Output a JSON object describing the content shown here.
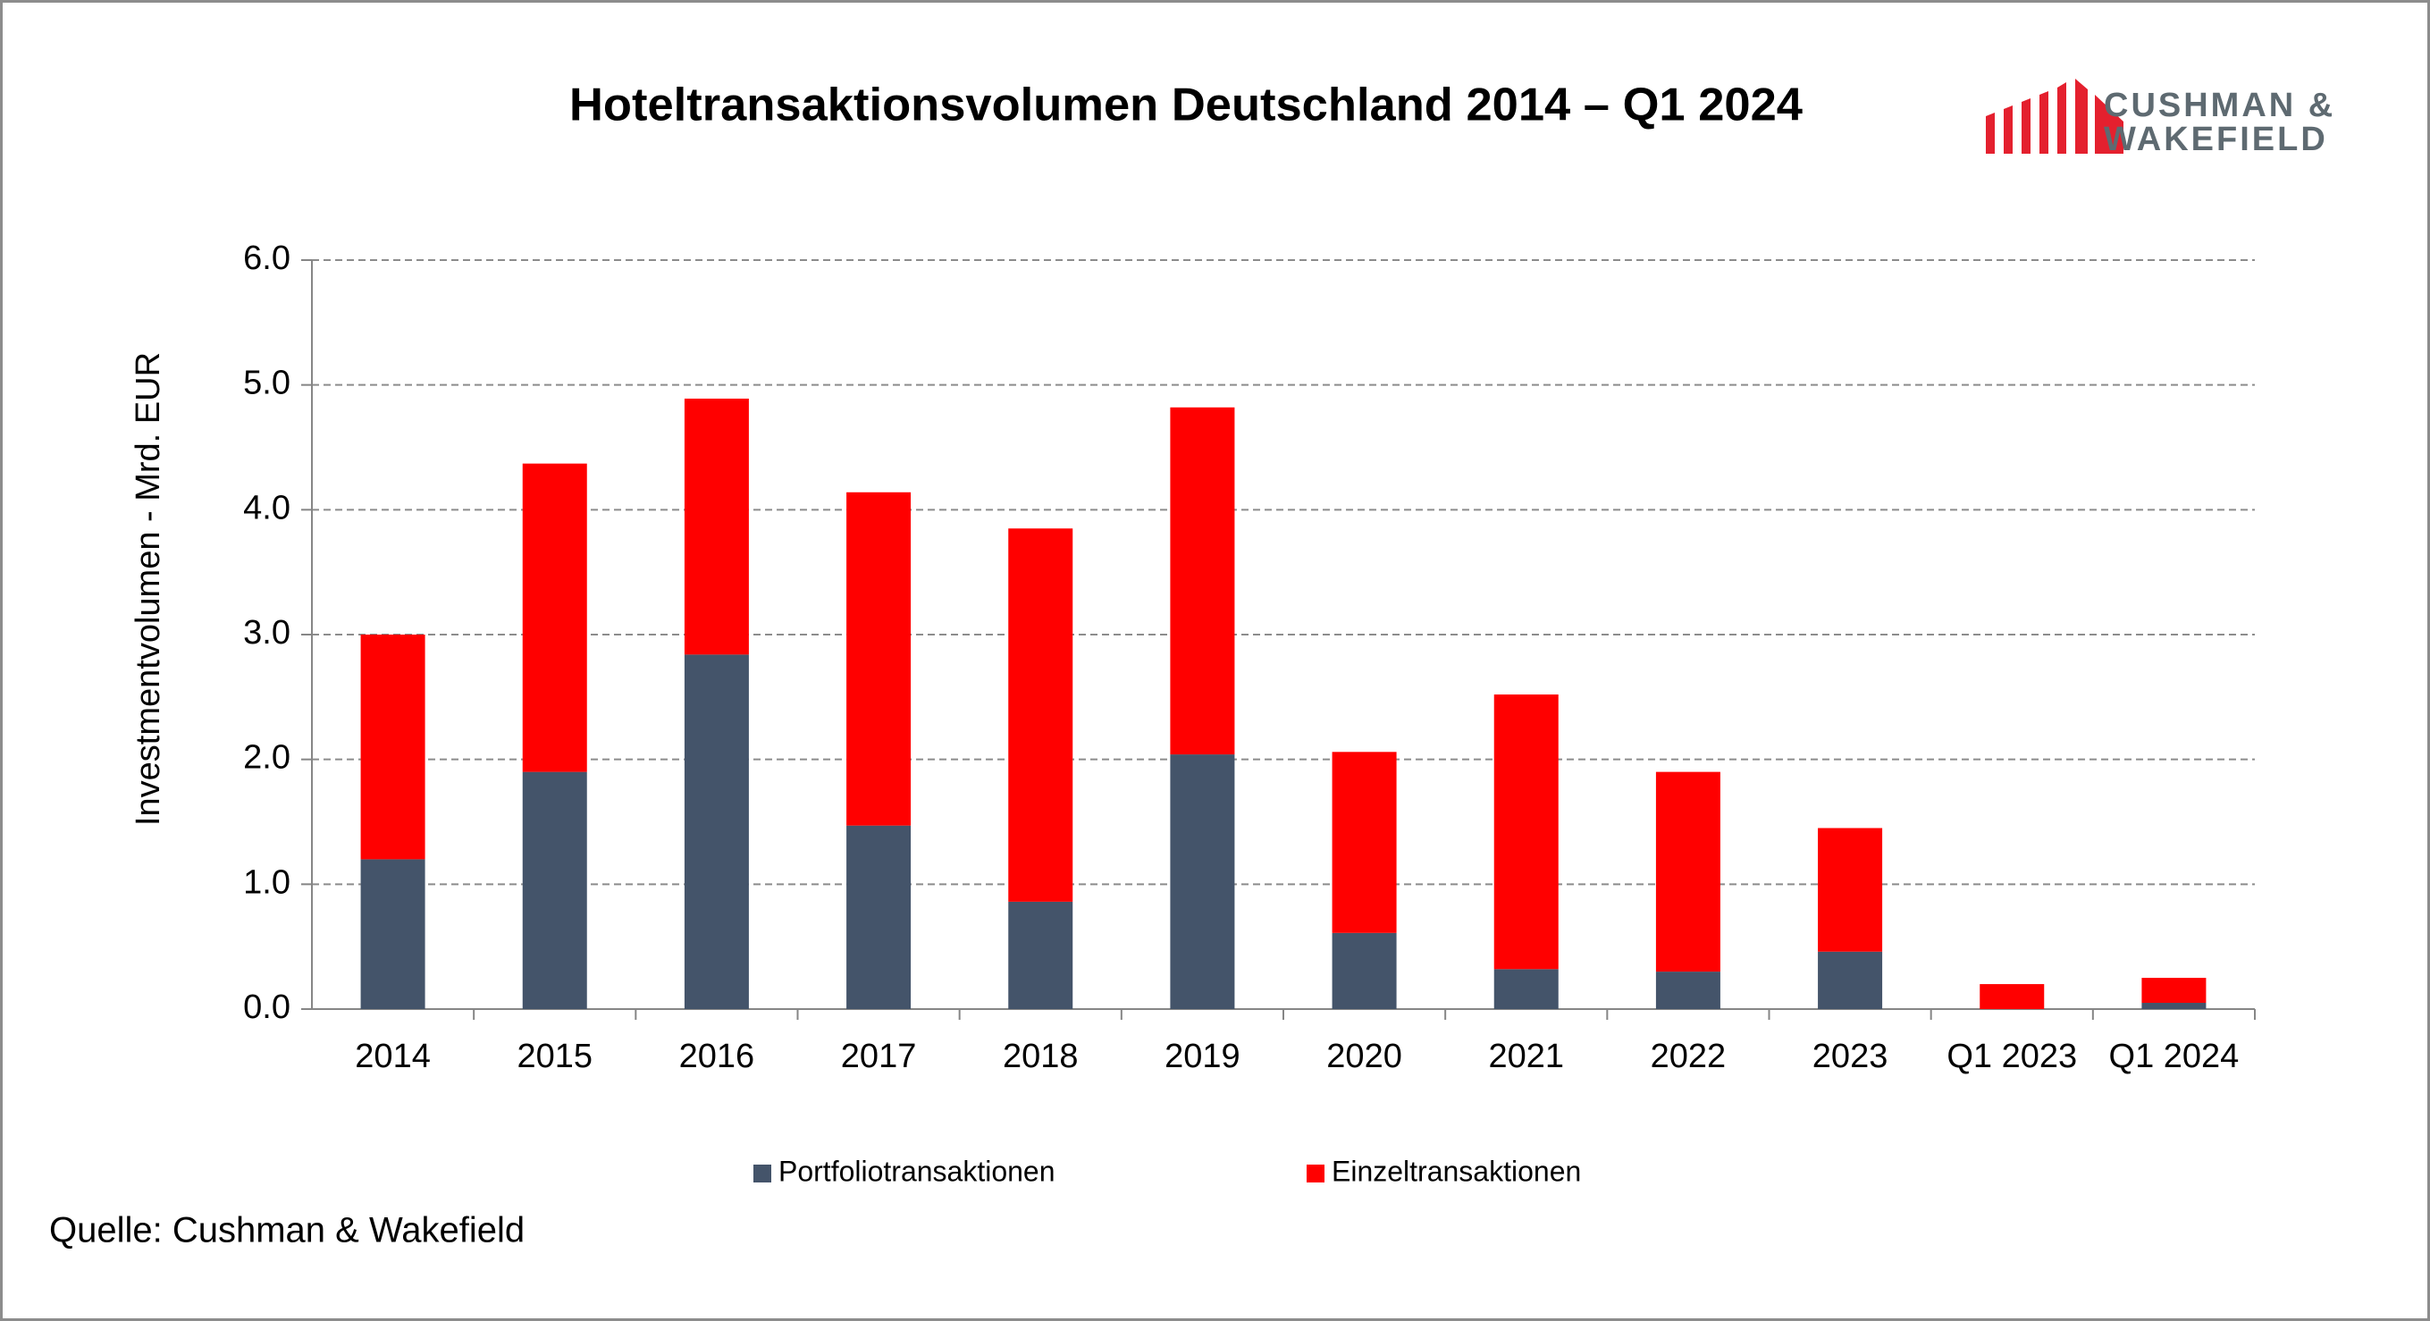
{
  "chart_data": {
    "type": "stacked_bar",
    "title": "Hoteltransaktionsvolumen Deutschland 2014 – Q1 2024",
    "y_label": "Investmentvolumen - Mrd. EUR",
    "source": "Quelle: Cushman & Wakefield",
    "logo": [
      "CUSHMAN &",
      "WAKEFIELD"
    ],
    "categories": [
      "2014",
      "2015",
      "2016",
      "2017",
      "2018",
      "2019",
      "2020",
      "2021",
      "2022",
      "2023",
      "Q1 2023",
      "Q1 2024"
    ],
    "series": [
      {
        "name": "Portfoliotransaktionen",
        "color": "#44546a",
        "values": [
          1.2,
          1.9,
          2.84,
          1.47,
          0.86,
          2.04,
          0.61,
          0.32,
          0.3,
          0.46,
          0,
          0.05
        ]
      },
      {
        "name": "Einzeltransaktionen",
        "color": "#ff0000",
        "values": [
          1.8,
          2.47,
          2.05,
          2.67,
          2.99,
          2.78,
          1.45,
          2.2,
          1.6,
          0.99,
          0.2,
          0.2
        ]
      }
    ],
    "ylim": [
      0,
      6
    ],
    "yticks": [
      {
        "value": 0,
        "label": "0.0"
      },
      {
        "value": 1,
        "label": "1.0"
      },
      {
        "value": 2,
        "label": "2.0"
      },
      {
        "value": 3,
        "label": "3.0"
      },
      {
        "value": 4,
        "label": "4.0"
      },
      {
        "value": 5,
        "label": "5.0"
      },
      {
        "value": 6,
        "label": "6.0"
      }
    ],
    "grid": true,
    "legend": "bottom"
  }
}
